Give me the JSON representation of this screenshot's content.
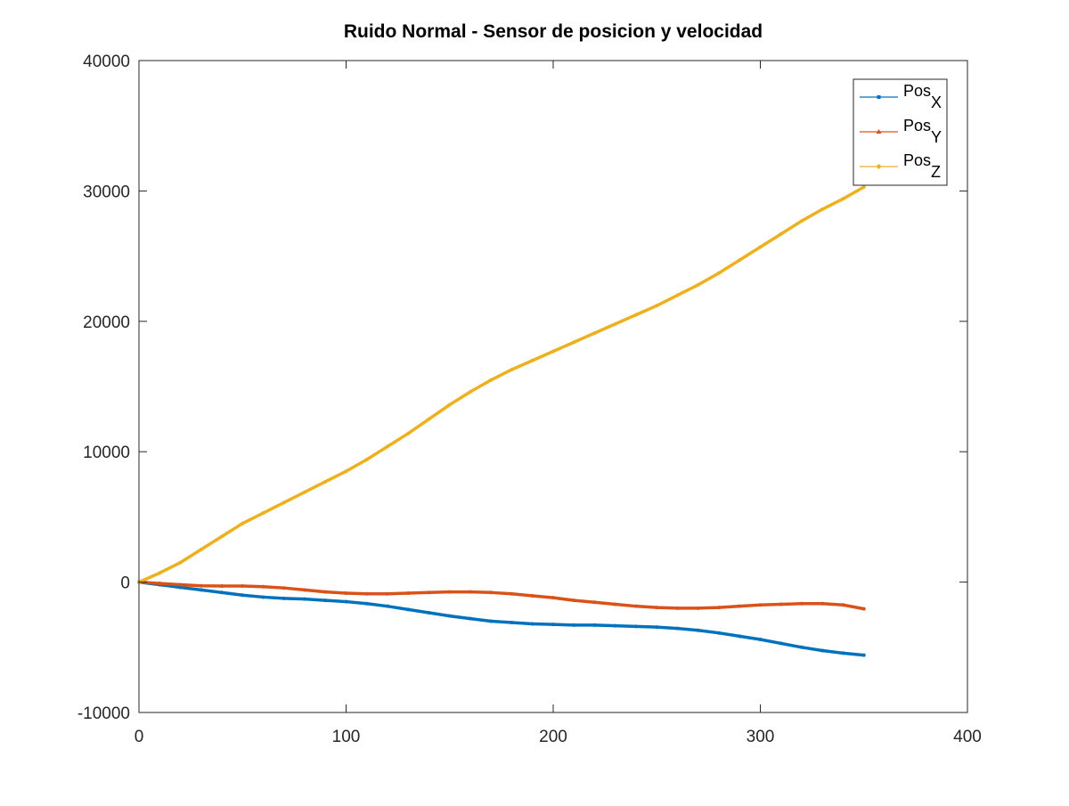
{
  "chart_data": {
    "type": "line",
    "title": "Ruido Normal - Sensor de posicion y velocidad",
    "xlabel": "",
    "ylabel": "",
    "xlim": [
      0,
      400
    ],
    "ylim": [
      -10000,
      40000
    ],
    "xticks": [
      0,
      100,
      200,
      300,
      400
    ],
    "yticks": [
      -10000,
      0,
      10000,
      20000,
      30000,
      40000
    ],
    "xtick_labels": [
      "0",
      "100",
      "200",
      "300",
      "400"
    ],
    "ytick_labels": [
      "-10000",
      "0",
      "10000",
      "20000",
      "30000",
      "40000"
    ],
    "grid": false,
    "legend_position": "top-right",
    "series": [
      {
        "name": "Pos",
        "subscript": "X",
        "color": "#0072BD",
        "marker": "square",
        "x": [
          0,
          10,
          20,
          30,
          40,
          50,
          60,
          70,
          80,
          90,
          100,
          110,
          120,
          130,
          140,
          150,
          160,
          170,
          180,
          190,
          200,
          210,
          220,
          230,
          240,
          250,
          260,
          270,
          280,
          290,
          300,
          310,
          320,
          330,
          340,
          350
        ],
        "y": [
          0,
          -200,
          -400,
          -600,
          -800,
          -1000,
          -1150,
          -1250,
          -1300,
          -1400,
          -1500,
          -1650,
          -1850,
          -2100,
          -2350,
          -2600,
          -2800,
          -3000,
          -3100,
          -3200,
          -3250,
          -3300,
          -3300,
          -3350,
          -3400,
          -3450,
          -3550,
          -3700,
          -3900,
          -4150,
          -4400,
          -4700,
          -5000,
          -5250,
          -5450,
          -5600
        ]
      },
      {
        "name": "Pos",
        "subscript": "Y",
        "color": "#D95319",
        "marker": "triangle",
        "x": [
          0,
          10,
          20,
          30,
          40,
          50,
          60,
          70,
          80,
          90,
          100,
          110,
          120,
          130,
          140,
          150,
          160,
          170,
          180,
          190,
          200,
          210,
          220,
          230,
          240,
          250,
          260,
          270,
          280,
          290,
          300,
          310,
          320,
          330,
          340,
          350
        ],
        "y": [
          0,
          -100,
          -200,
          -280,
          -300,
          -300,
          -350,
          -450,
          -600,
          -750,
          -850,
          -900,
          -900,
          -850,
          -800,
          -750,
          -750,
          -800,
          -900,
          -1050,
          -1200,
          -1400,
          -1550,
          -1700,
          -1850,
          -1950,
          -2000,
          -2000,
          -1950,
          -1850,
          -1750,
          -1700,
          -1650,
          -1650,
          -1750,
          -2050
        ]
      },
      {
        "name": "Pos",
        "subscript": "Z",
        "color": "#EDB120",
        "marker": "diamond",
        "x": [
          0,
          10,
          20,
          30,
          40,
          50,
          60,
          70,
          80,
          90,
          100,
          110,
          120,
          130,
          140,
          150,
          160,
          170,
          180,
          190,
          200,
          210,
          220,
          230,
          240,
          250,
          260,
          270,
          280,
          290,
          300,
          310,
          320,
          330,
          340,
          350
        ],
        "y": [
          0,
          700,
          1500,
          2500,
          3500,
          4500,
          5300,
          6100,
          6900,
          7700,
          8500,
          9400,
          10400,
          11400,
          12500,
          13600,
          14600,
          15500,
          16300,
          17000,
          17700,
          18400,
          19100,
          19800,
          20500,
          21200,
          22000,
          22800,
          23700,
          24700,
          25700,
          26700,
          27700,
          28600,
          29400,
          30300
        ]
      }
    ]
  }
}
